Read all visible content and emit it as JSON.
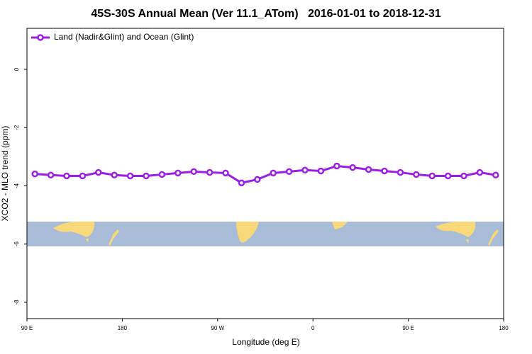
{
  "chart_data": {
    "type": "line",
    "title": "45S-30S Annual Mean (Ver 11.1_ATom)   2016-01-01 to 2018-12-31",
    "x_label": "Longitude (deg E)",
    "y_label": "XCO2 - MLO trend (ppm)",
    "x": [
      97.5,
      112.5,
      127.5,
      142.5,
      157.5,
      172.5,
      187.5,
      202.5,
      217.5,
      232.5,
      247.5,
      262.5,
      277.5,
      292.5,
      307.5,
      322.5,
      337.5,
      352.5,
      367.5,
      382.5,
      397.5,
      412.5,
      427.5,
      442.5,
      457.5,
      472.5,
      487.5,
      502.5,
      517.5,
      532.5
    ],
    "series": [
      {
        "name": "Land (Nadir&Glint) and Ocean (Glint)",
        "color": "#9a1ee6",
        "values": [
          -3.59,
          -3.63,
          -3.66,
          -3.66,
          -3.54,
          -3.63,
          -3.66,
          -3.66,
          -3.61,
          -3.56,
          -3.51,
          -3.54,
          -3.56,
          -3.9,
          -3.78,
          -3.56,
          -3.51,
          -3.46,
          -3.49,
          -3.32,
          -3.37,
          -3.44,
          -3.49,
          -3.54,
          -3.61,
          -3.66,
          -3.66,
          -3.66,
          -3.54,
          -3.63
        ]
      }
    ],
    "xlim": [
      90,
      540
    ],
    "xticks": [
      {
        "value": 90,
        "label": "90 E"
      },
      180,
      {
        "value": 270,
        "label": "90 W"
      },
      {
        "value": 360,
        "label": "0"
      },
      {
        "value": 450,
        "label": "90 E"
      },
      {
        "value": 540,
        "label": "180"
      }
    ],
    "ylim": [
      -8.56,
      1.41
    ],
    "yticks": [
      0,
      -2,
      -4,
      -6,
      -8
    ],
    "legend": "top-left"
  }
}
